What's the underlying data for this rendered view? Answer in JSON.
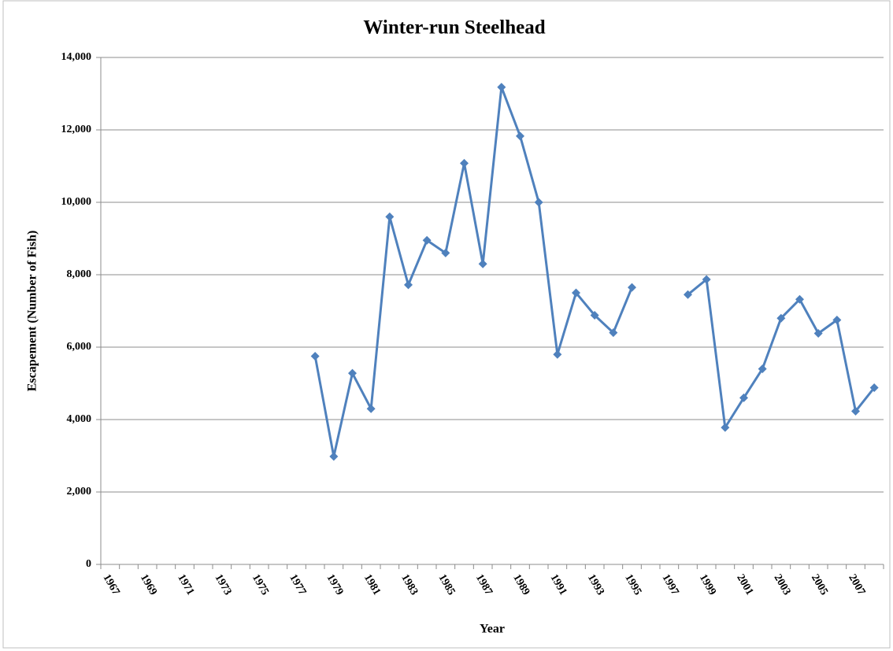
{
  "chart_data": {
    "type": "line",
    "title": "Winter-run  Steelhead",
    "x_label": "Year",
    "y_label": "Escapement (Number of Fish)",
    "categories": [
      "1967",
      null,
      "1969",
      null,
      "1971",
      null,
      "1973",
      null,
      "1975",
      null,
      "1977",
      null,
      "1979",
      null,
      "1981",
      null,
      "1983",
      null,
      "1985",
      null,
      "1987",
      null,
      "1989",
      null,
      "1991",
      null,
      "1993",
      null,
      "1995",
      null,
      "1997",
      null,
      "1999",
      null,
      "2001",
      null,
      "2003",
      null,
      "2005",
      null,
      "2007",
      null
    ],
    "values": [
      null,
      null,
      null,
      null,
      null,
      null,
      null,
      null,
      null,
      null,
      null,
      5750,
      2980,
      5280,
      4300,
      9600,
      7720,
      8950,
      8600,
      11080,
      8300,
      13180,
      11830,
      10000,
      5800,
      7500,
      6880,
      6400,
      7650,
      null,
      null,
      7450,
      7870,
      3780,
      4600,
      5400,
      6800,
      7320,
      6380,
      6750,
      4230,
      4880
    ],
    "color": "#4f81bd",
    "ylim": [
      0,
      14000
    ],
    "yticks": [
      0,
      {
        "value": 2000,
        "label": "2,000"
      },
      {
        "value": 4000,
        "label": "4,000"
      },
      {
        "value": 6000,
        "label": "6,000"
      },
      {
        "value": 8000,
        "label": "8,000"
      },
      {
        "value": 10000,
        "label": "10,000"
      },
      {
        "value": 12000,
        "label": "12,000"
      },
      {
        "value": 14000,
        "label": "14,000"
      }
    ],
    "grid": true
  }
}
